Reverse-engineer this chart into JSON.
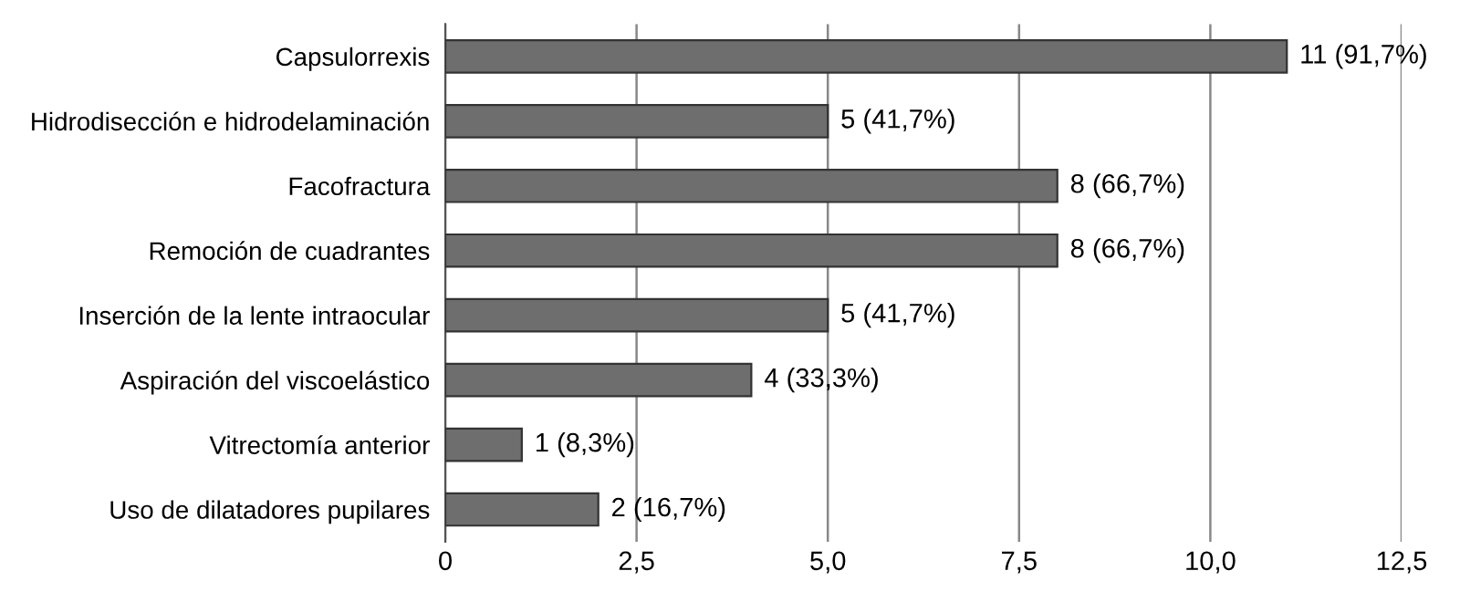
{
  "chart_data": {
    "type": "bar",
    "orientation": "horizontal",
    "categories": [
      "Capsulorrexis",
      "Hidrodisección e hidrodelaminación",
      "Facofractura",
      "Remoción de cuadrantes",
      "Inserción de la lente intraocular",
      "Aspiración del viscoelástico",
      "Vitrectomía anterior",
      "Uso de dilatadores pupilares"
    ],
    "values": [
      11,
      5,
      8,
      8,
      5,
      4,
      1,
      2
    ],
    "value_labels": [
      "11 (91,7%)",
      "5 (41,7%)",
      "8 (66,7%)",
      "8 (66,7%)",
      "5 (41,7%)",
      "4 (33,3%)",
      "1 (8,3%)",
      "2 (16,7%)"
    ],
    "color": "#6e6e6e",
    "xlim": [
      0,
      12.5
    ],
    "xticks": [
      0,
      {
        "value": 2.5,
        "label": "2,5"
      },
      {
        "value": 5,
        "label": "5,0"
      },
      {
        "value": 7.5,
        "label": "7,5"
      },
      {
        "value": 10,
        "label": "10,0"
      },
      {
        "value": 12.5,
        "label": "12,5"
      }
    ],
    "grid": "x"
  }
}
